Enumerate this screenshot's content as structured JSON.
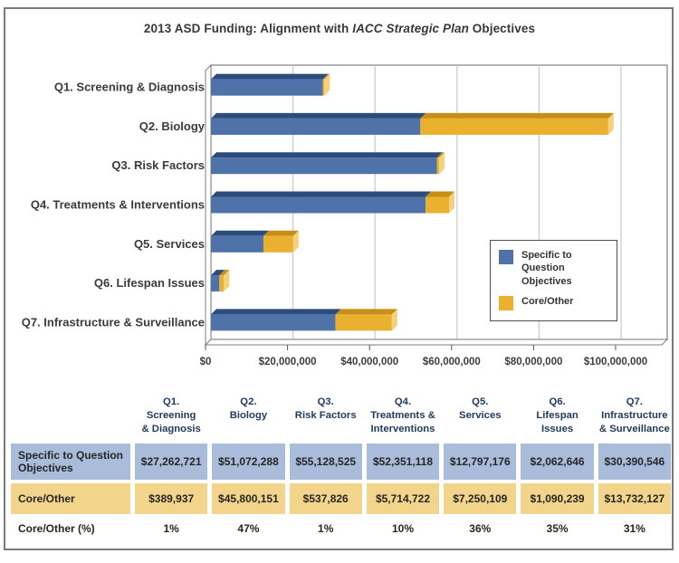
{
  "title": {
    "prefix": "2013 ASD Funding: Alignment with ",
    "italic": "IACC Strategic Plan",
    "suffix": " Objectives"
  },
  "colors": {
    "frame": "#7f7f7f",
    "gridline": "#c9c9c9",
    "bar_blue_top": "#2b4c7c",
    "bar_gold_top": "#c88e16",
    "bar_gold_cap": "#f3d27f",
    "table_blue": "#A9BCD9",
    "table_gold": "#F2D58B"
  },
  "chart_data": {
    "type": "bar",
    "orientation": "horizontal",
    "stacked": true,
    "style": "3d",
    "grid": "vertical",
    "legend_position": "middle-right",
    "x_axis": {
      "min": 0,
      "max": 100000000,
      "tick_values": [
        0,
        20000000,
        40000000,
        60000000,
        80000000,
        100000000
      ],
      "tick_labels": [
        "$0",
        "$20,000,000",
        "$40,000,000",
        "$60,000,000",
        "$80,000,000",
        "$100,000,000"
      ]
    },
    "categories": [
      "Q1. Screening & Diagnosis",
      "Q2. Biology",
      "Q3. Risk Factors",
      "Q4. Treatments & Interventions",
      "Q5. Services",
      "Q6. Lifespan Issues",
      "Q7. Infrastructure & Surveillance"
    ],
    "series": [
      {
        "name": "Specific to Question Objectives",
        "color": "#4F73A8",
        "values": [
          27262721,
          51072288,
          55128525,
          52351118,
          12797176,
          2062646,
          30390546
        ]
      },
      {
        "name": "Core/Other",
        "color": "#EAB02F",
        "values": [
          389937,
          45800151,
          537826,
          5714722,
          7250109,
          1090239,
          13732127
        ]
      }
    ]
  },
  "table": {
    "col_headers": [
      "Q1.\nScreening\n& Diagnosis",
      "Q2.\nBiology",
      "Q3.\nRisk Factors",
      "Q4.\nTreatments &\nInterventions",
      "Q5.\nServices",
      "Q6.\nLifespan Issues",
      "Q7.\nInfrastructure\n& Surveillance"
    ],
    "rows": [
      {
        "label": "Specific to Question Objectives",
        "style": "blue",
        "values": [
          "$27,262,721",
          "$51,072,288",
          "$55,128,525",
          "$52,351,118",
          "$12,797,176",
          "$2,062,646",
          "$30,390,546"
        ]
      },
      {
        "label": "Core/Other",
        "style": "gold",
        "values": [
          "$389,937",
          "$45,800,151",
          "$537,826",
          "$5,714,722",
          "$7,250,109",
          "$1,090,239",
          "$13,732,127"
        ]
      },
      {
        "label": "Core/Other (%)",
        "style": "plain",
        "values": [
          "1%",
          "47%",
          "1%",
          "10%",
          "36%",
          "35%",
          "31%"
        ]
      }
    ]
  }
}
